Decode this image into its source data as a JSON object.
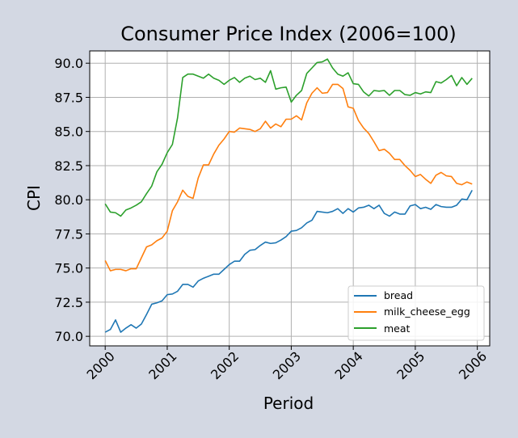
{
  "chart_data": {
    "type": "line",
    "title": "Consumer Price Index (2006=100)",
    "xlabel": "Period",
    "ylabel": "CPI",
    "xlim": [
      1999.75,
      2006.2
    ],
    "ylim": [
      69.3,
      90.9
    ],
    "xticks": [
      2000,
      2001,
      2002,
      2003,
      2004,
      2005,
      2006
    ],
    "yticks": [
      70.0,
      72.5,
      75.0,
      77.5,
      80.0,
      82.5,
      85.0,
      87.5,
      90.0
    ],
    "grid": true,
    "legend_position": "lower right",
    "series": [
      {
        "name": "bread",
        "color": "#1f77b4",
        "values": [
          70.3,
          70.5,
          71.2,
          70.3,
          70.6,
          70.85,
          70.6,
          70.9,
          71.6,
          72.35,
          72.45,
          72.6,
          73.05,
          73.1,
          73.3,
          73.8,
          73.8,
          73.6,
          74.05,
          74.25,
          74.4,
          74.55,
          74.55,
          74.9,
          75.25,
          75.5,
          75.5,
          76.0,
          76.3,
          76.35,
          76.65,
          76.9,
          76.8,
          76.85,
          77.05,
          77.3,
          77.7,
          77.75,
          77.95,
          78.3,
          78.5,
          79.15,
          79.1,
          79.05,
          79.15,
          79.35,
          79.0,
          79.35,
          79.1,
          79.4,
          79.45,
          79.6,
          79.35,
          79.6,
          79.0,
          78.8,
          79.1,
          78.95,
          78.95,
          79.55,
          79.65,
          79.35,
          79.45,
          79.3,
          79.65,
          79.5,
          79.45,
          79.45,
          79.6,
          80.05,
          80.0,
          80.7
        ]
      },
      {
        "name": "milk_cheese_egg",
        "color": "#ff7f0e",
        "values": [
          75.55,
          74.8,
          74.9,
          74.9,
          74.8,
          74.95,
          74.95,
          75.75,
          76.55,
          76.7,
          77.0,
          77.2,
          77.7,
          79.2,
          79.85,
          80.7,
          80.25,
          80.1,
          81.6,
          82.55,
          82.55,
          83.35,
          84.0,
          84.45,
          85.0,
          84.95,
          85.25,
          85.2,
          85.15,
          85.0,
          85.2,
          85.75,
          85.25,
          85.55,
          85.35,
          85.9,
          85.9,
          86.15,
          85.85,
          87.1,
          87.8,
          88.2,
          87.8,
          87.85,
          88.45,
          88.45,
          88.15,
          86.8,
          86.7,
          85.8,
          85.25,
          84.85,
          84.25,
          83.6,
          83.7,
          83.4,
          82.95,
          82.95,
          82.5,
          82.15,
          81.7,
          81.85,
          81.5,
          81.2,
          81.8,
          82.0,
          81.75,
          81.7,
          81.2,
          81.1,
          81.3,
          81.15
        ]
      },
      {
        "name": "meat",
        "color": "#2ca02c",
        "values": [
          79.7,
          79.1,
          79.05,
          78.8,
          79.25,
          79.4,
          79.6,
          79.85,
          80.45,
          81.0,
          82.05,
          82.6,
          83.45,
          84.05,
          86.0,
          88.95,
          89.2,
          89.2,
          89.05,
          88.9,
          89.2,
          88.9,
          88.75,
          88.45,
          88.75,
          88.95,
          88.6,
          88.9,
          89.05,
          88.8,
          88.9,
          88.6,
          89.45,
          88.1,
          88.2,
          88.25,
          87.15,
          87.65,
          88.0,
          89.25,
          89.65,
          90.05,
          90.1,
          90.3,
          89.65,
          89.2,
          89.05,
          89.3,
          88.5,
          88.45,
          87.9,
          87.6,
          88.0,
          87.95,
          88.0,
          87.65,
          88.0,
          88.0,
          87.7,
          87.65,
          87.85,
          87.75,
          87.9,
          87.85,
          88.65,
          88.55,
          88.8,
          89.1,
          88.35,
          88.95,
          88.45,
          88.9
        ]
      }
    ]
  }
}
